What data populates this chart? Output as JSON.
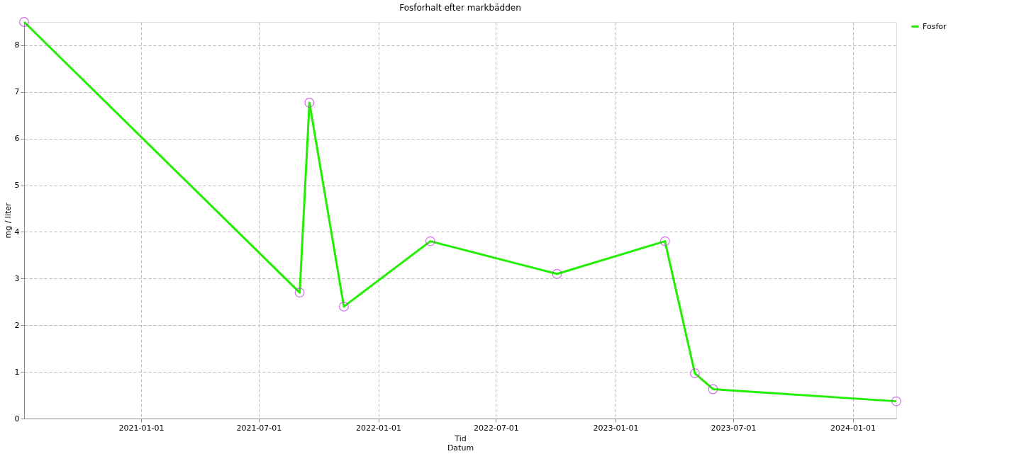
{
  "chart_data": {
    "type": "line",
    "title": "Fosforhalt efter markbädden",
    "xlabel": "Tid\nDatum",
    "ylabel": "mg / liter",
    "x": [
      "2020-07-05",
      "2021-09-02",
      "2021-09-17",
      "2021-11-09",
      "2022-03-22",
      "2022-10-03",
      "2023-03-18",
      "2023-05-03",
      "2023-05-31",
      "2024-03-08"
    ],
    "series": [
      {
        "name": "Fosfor",
        "color": "#22ee00",
        "values": [
          8.5,
          2.7,
          6.77,
          2.4,
          3.8,
          3.1,
          3.8,
          0.97,
          0.63,
          0.37
        ]
      }
    ],
    "xlim": [
      "2020-07-05",
      "2024-03-08"
    ],
    "xticks": [
      "2021-01-01",
      "2021-07-01",
      "2022-01-01",
      "2022-07-01",
      "2023-01-01",
      "2023-07-01",
      "2024-01-01"
    ],
    "ylim": [
      0,
      8.5
    ],
    "yticks": [
      0,
      1,
      2,
      3,
      4,
      5,
      6,
      7,
      8
    ],
    "grid": true,
    "legend": "right",
    "marker": "circle",
    "line_style": "solid"
  }
}
